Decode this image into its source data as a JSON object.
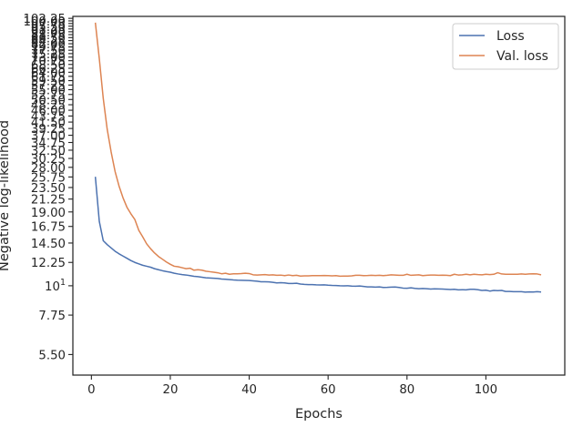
{
  "chart_data": {
    "type": "line",
    "title": "",
    "xlabel": "Epochs",
    "ylabel": "Negative log-likelihood",
    "yscale": "log",
    "xlim": [
      -4.7,
      120
    ],
    "ylim": [
      4.6,
      104
    ],
    "xticks": [
      {
        "value": 0,
        "label": "0"
      },
      {
        "value": 20,
        "label": "20"
      },
      {
        "value": 40,
        "label": "40"
      },
      {
        "value": 60,
        "label": "60"
      },
      {
        "value": 80,
        "label": "80"
      },
      {
        "value": 100,
        "label": "100"
      }
    ],
    "yticks": [
      {
        "value": 5.5,
        "label": "5.50"
      },
      {
        "value": 7.75,
        "label": "7.75"
      },
      {
        "value": 10,
        "label": "10"
      },
      {
        "value": 12.25,
        "label": "12.25"
      },
      {
        "value": 14.5,
        "label": "14.50"
      },
      {
        "value": 16.75,
        "label": "16.75"
      },
      {
        "value": 19,
        "label": "19.00"
      },
      {
        "value": 21.25,
        "label": "21.25"
      },
      {
        "value": 23.5,
        "label": "23.50"
      },
      {
        "value": 25.75,
        "label": "25.75"
      },
      {
        "value": 28,
        "label": "28.00"
      },
      {
        "value": 30.25,
        "label": "30.25"
      },
      {
        "value": 32.5,
        "label": "32.50"
      },
      {
        "value": 34.75,
        "label": "34.75"
      },
      {
        "value": 37,
        "label": "37.00"
      },
      {
        "value": 39.25,
        "label": "39.25"
      },
      {
        "value": 41.5,
        "label": "41.50"
      },
      {
        "value": 43.75,
        "label": "43.75"
      },
      {
        "value": 46,
        "label": "46.00"
      },
      {
        "value": 48.25,
        "label": "48.25"
      },
      {
        "value": 50.5,
        "label": "50.50"
      },
      {
        "value": 52.75,
        "label": "52.75"
      },
      {
        "value": 55,
        "label": "55.00"
      },
      {
        "value": 57.25,
        "label": "57.25"
      },
      {
        "value": 59.5,
        "label": "59.50"
      },
      {
        "value": 61.75,
        "label": "61.75"
      },
      {
        "value": 64,
        "label": "64.00"
      },
      {
        "value": 66.25,
        "label": "66.25"
      },
      {
        "value": 68.5,
        "label": "68.50"
      },
      {
        "value": 70.75,
        "label": "70.75"
      },
      {
        "value": 73,
        "label": "73.00"
      },
      {
        "value": 75.25,
        "label": "75.25"
      },
      {
        "value": 77.5,
        "label": "77.50"
      },
      {
        "value": 79.75,
        "label": "79.75"
      },
      {
        "value": 82,
        "label": "82.00"
      },
      {
        "value": 84.25,
        "label": "84.25"
      },
      {
        "value": 86.5,
        "label": "86.50"
      },
      {
        "value": 88.75,
        "label": "88.75"
      },
      {
        "value": 91,
        "label": "91.00"
      },
      {
        "value": 93.25,
        "label": "93.25"
      },
      {
        "value": 95.5,
        "label": "95.50"
      },
      {
        "value": 97.75,
        "label": "97.75"
      },
      {
        "value": 100,
        "label": "100.00"
      },
      {
        "value": 102.25,
        "label": "102.25"
      }
    ],
    "ytick_10_label": {
      "base": "10",
      "exp": "1"
    },
    "grid": false,
    "legend": "top-right",
    "series": [
      {
        "name": "Loss",
        "color": "#4c72b0",
        "points": [
          [
            1,
            25.8
          ],
          [
            2,
            17.5
          ],
          [
            3,
            14.8
          ],
          [
            4,
            14.3
          ],
          [
            5,
            13.9
          ],
          [
            6,
            13.5
          ],
          [
            7,
            13.2
          ],
          [
            8,
            12.95
          ],
          [
            9,
            12.7
          ],
          [
            10,
            12.45
          ],
          [
            11,
            12.25
          ],
          [
            12,
            12.1
          ],
          [
            13,
            11.95
          ],
          [
            14,
            11.85
          ],
          [
            15,
            11.75
          ],
          [
            16,
            11.6
          ],
          [
            17,
            11.5
          ],
          [
            18,
            11.4
          ],
          [
            19,
            11.32
          ],
          [
            20,
            11.25
          ],
          [
            21,
            11.15
          ],
          [
            22,
            11.08
          ],
          [
            23,
            11.02
          ],
          [
            24,
            10.98
          ],
          [
            25,
            10.92
          ],
          [
            26,
            10.86
          ],
          [
            27,
            10.82
          ],
          [
            28,
            10.77
          ],
          [
            29,
            10.72
          ],
          [
            30,
            10.7
          ],
          [
            31,
            10.68
          ],
          [
            32,
            10.65
          ],
          [
            33,
            10.6
          ],
          [
            34,
            10.58
          ],
          [
            35,
            10.55
          ],
          [
            36,
            10.52
          ],
          [
            37,
            10.5
          ],
          [
            38,
            10.49
          ],
          [
            39,
            10.48
          ],
          [
            40,
            10.47
          ],
          [
            41,
            10.44
          ],
          [
            42,
            10.4
          ],
          [
            43,
            10.35
          ],
          [
            44,
            10.35
          ],
          [
            45,
            10.34
          ],
          [
            46,
            10.3
          ],
          [
            47,
            10.25
          ],
          [
            48,
            10.27
          ],
          [
            49,
            10.25
          ],
          [
            50,
            10.2
          ],
          [
            51,
            10.2
          ],
          [
            52,
            10.22
          ],
          [
            53,
            10.15
          ],
          [
            54,
            10.12
          ],
          [
            55,
            10.1
          ],
          [
            56,
            10.1
          ],
          [
            57,
            10.08
          ],
          [
            58,
            10.07
          ],
          [
            59,
            10.08
          ],
          [
            60,
            10.05
          ],
          [
            61,
            10.03
          ],
          [
            62,
            10.02
          ],
          [
            63,
            10.0
          ],
          [
            64,
            9.99
          ],
          [
            65,
            10.0
          ],
          [
            66,
            9.97
          ],
          [
            67,
            9.96
          ],
          [
            68,
            9.98
          ],
          [
            69,
            9.94
          ],
          [
            70,
            9.9
          ],
          [
            71,
            9.9
          ],
          [
            72,
            9.88
          ],
          [
            73,
            9.9
          ],
          [
            74,
            9.85
          ],
          [
            75,
            9.86
          ],
          [
            76,
            9.88
          ],
          [
            77,
            9.89
          ],
          [
            78,
            9.85
          ],
          [
            79,
            9.8
          ],
          [
            80,
            9.79
          ],
          [
            81,
            9.82
          ],
          [
            82,
            9.78
          ],
          [
            83,
            9.75
          ],
          [
            84,
            9.77
          ],
          [
            85,
            9.75
          ],
          [
            86,
            9.72
          ],
          [
            87,
            9.74
          ],
          [
            88,
            9.73
          ],
          [
            89,
            9.72
          ],
          [
            90,
            9.7
          ],
          [
            91,
            9.68
          ],
          [
            92,
            9.7
          ],
          [
            93,
            9.65
          ],
          [
            94,
            9.66
          ],
          [
            95,
            9.65
          ],
          [
            96,
            9.7
          ],
          [
            97,
            9.7
          ],
          [
            98,
            9.66
          ],
          [
            99,
            9.6
          ],
          [
            100,
            9.62
          ],
          [
            101,
            9.55
          ],
          [
            102,
            9.6
          ],
          [
            103,
            9.58
          ],
          [
            104,
            9.6
          ],
          [
            105,
            9.52
          ],
          [
            106,
            9.52
          ],
          [
            107,
            9.5
          ],
          [
            108,
            9.5
          ],
          [
            109,
            9.5
          ],
          [
            110,
            9.46
          ],
          [
            111,
            9.48
          ],
          [
            112,
            9.47
          ],
          [
            113,
            9.5
          ],
          [
            114,
            9.47
          ]
        ]
      },
      {
        "name": "Val. loss",
        "color": "#dd8452",
        "points": [
          [
            1,
            98.5
          ],
          [
            2,
            72
          ],
          [
            3,
            51
          ],
          [
            4,
            39
          ],
          [
            5,
            32
          ],
          [
            6,
            27
          ],
          [
            7,
            23.8
          ],
          [
            8,
            21.5
          ],
          [
            9,
            19.8
          ],
          [
            10,
            18.7
          ],
          [
            11,
            17.8
          ],
          [
            12,
            16.2
          ],
          [
            13,
            15.3
          ],
          [
            14,
            14.4
          ],
          [
            15,
            13.8
          ],
          [
            16,
            13.3
          ],
          [
            17,
            12.9
          ],
          [
            18,
            12.6
          ],
          [
            19,
            12.3
          ],
          [
            20,
            12.05
          ],
          [
            21,
            11.85
          ],
          [
            22,
            11.8
          ],
          [
            23,
            11.7
          ],
          [
            24,
            11.6
          ],
          [
            25,
            11.65
          ],
          [
            26,
            11.45
          ],
          [
            27,
            11.5
          ],
          [
            28,
            11.45
          ],
          [
            29,
            11.35
          ],
          [
            30,
            11.3
          ],
          [
            31,
            11.25
          ],
          [
            32,
            11.2
          ],
          [
            33,
            11.1
          ],
          [
            34,
            11.15
          ],
          [
            35,
            11.05
          ],
          [
            36,
            11.1
          ],
          [
            37,
            11.1
          ],
          [
            38,
            11.12
          ],
          [
            39,
            11.15
          ],
          [
            40,
            11.12
          ],
          [
            41,
            11.0
          ],
          [
            42,
            10.98
          ],
          [
            43,
            11.0
          ],
          [
            44,
            11.02
          ],
          [
            45,
            10.98
          ],
          [
            46,
            11.0
          ],
          [
            47,
            10.95
          ],
          [
            48,
            10.97
          ],
          [
            49,
            10.92
          ],
          [
            50,
            10.98
          ],
          [
            51,
            10.92
          ],
          [
            52,
            10.95
          ],
          [
            53,
            10.88
          ],
          [
            54,
            10.9
          ],
          [
            55,
            10.9
          ],
          [
            56,
            10.92
          ],
          [
            57,
            10.92
          ],
          [
            58,
            10.92
          ],
          [
            59,
            10.93
          ],
          [
            60,
            10.92
          ],
          [
            61,
            10.9
          ],
          [
            62,
            10.92
          ],
          [
            63,
            10.87
          ],
          [
            64,
            10.88
          ],
          [
            65,
            10.88
          ],
          [
            66,
            10.9
          ],
          [
            67,
            10.95
          ],
          [
            68,
            10.95
          ],
          [
            69,
            10.92
          ],
          [
            70,
            10.93
          ],
          [
            71,
            10.95
          ],
          [
            72,
            10.93
          ],
          [
            73,
            10.95
          ],
          [
            74,
            10.92
          ],
          [
            75,
            10.95
          ],
          [
            76,
            11.0
          ],
          [
            77,
            10.98
          ],
          [
            78,
            10.95
          ],
          [
            79,
            10.95
          ],
          [
            80,
            11.05
          ],
          [
            81,
            10.95
          ],
          [
            82,
            10.98
          ],
          [
            83,
            11.0
          ],
          [
            84,
            10.92
          ],
          [
            85,
            10.95
          ],
          [
            86,
            10.98
          ],
          [
            87,
            10.98
          ],
          [
            88,
            10.95
          ],
          [
            89,
            10.97
          ],
          [
            90,
            10.95
          ],
          [
            91,
            10.92
          ],
          [
            92,
            11.05
          ],
          [
            93,
            10.98
          ],
          [
            94,
            11.0
          ],
          [
            95,
            11.05
          ],
          [
            96,
            11.0
          ],
          [
            97,
            11.05
          ],
          [
            98,
            11.02
          ],
          [
            99,
            11.0
          ],
          [
            100,
            11.05
          ],
          [
            101,
            11.02
          ],
          [
            102,
            11.05
          ],
          [
            103,
            11.2
          ],
          [
            104,
            11.08
          ],
          [
            105,
            11.05
          ],
          [
            106,
            11.05
          ],
          [
            107,
            11.05
          ],
          [
            108,
            11.05
          ],
          [
            109,
            11.08
          ],
          [
            110,
            11.05
          ],
          [
            111,
            11.08
          ],
          [
            112,
            11.1
          ],
          [
            113,
            11.08
          ],
          [
            114,
            11.0
          ]
        ]
      }
    ]
  }
}
